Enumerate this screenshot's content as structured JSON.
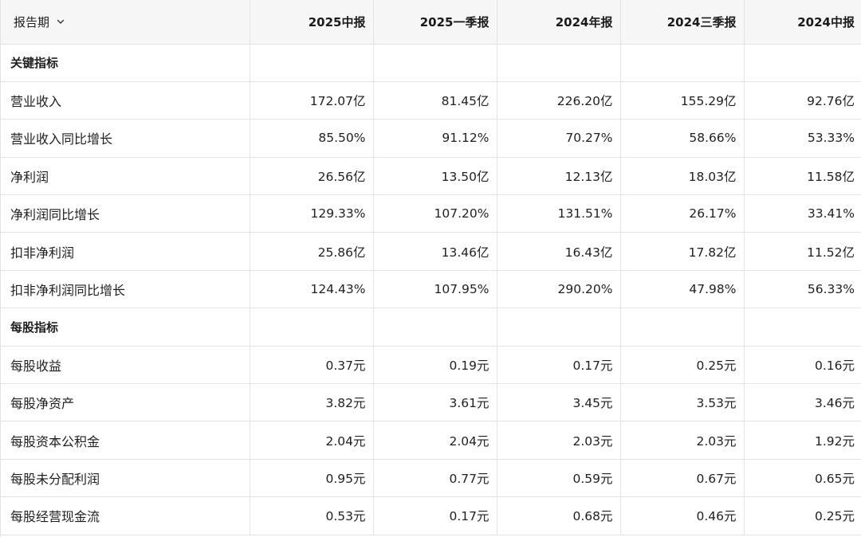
{
  "header": {
    "period_label": "报告期",
    "columns": [
      "2025中报",
      "2025一季报",
      "2024年报",
      "2024三季报",
      "2024中报"
    ]
  },
  "rows": [
    {
      "type": "section",
      "label": "关键指标",
      "values": [
        "",
        "",
        "",
        "",
        ""
      ]
    },
    {
      "type": "data",
      "label": "营业收入",
      "values": [
        "172.07亿",
        "81.45亿",
        "226.20亿",
        "155.29亿",
        "92.76亿"
      ]
    },
    {
      "type": "data",
      "label": "营业收入同比增长",
      "values": [
        "85.50%",
        "91.12%",
        "70.27%",
        "58.66%",
        "53.33%"
      ]
    },
    {
      "type": "data",
      "label": "净利润",
      "values": [
        "26.56亿",
        "13.50亿",
        "12.13亿",
        "18.03亿",
        "11.58亿"
      ]
    },
    {
      "type": "data",
      "label": "净利润同比增长",
      "values": [
        "129.33%",
        "107.20%",
        "131.51%",
        "26.17%",
        "33.41%"
      ]
    },
    {
      "type": "data",
      "label": "扣非净利润",
      "values": [
        "25.86亿",
        "13.46亿",
        "16.43亿",
        "17.82亿",
        "11.52亿"
      ]
    },
    {
      "type": "data",
      "label": "扣非净利润同比增长",
      "values": [
        "124.43%",
        "107.95%",
        "290.20%",
        "47.98%",
        "56.33%"
      ]
    },
    {
      "type": "section",
      "label": "每股指标",
      "values": [
        "",
        "",
        "",
        "",
        ""
      ]
    },
    {
      "type": "data",
      "label": "每股收益",
      "values": [
        "0.37元",
        "0.19元",
        "0.17元",
        "0.25元",
        "0.16元"
      ]
    },
    {
      "type": "data",
      "label": "每股净资产",
      "values": [
        "3.82元",
        "3.61元",
        "3.45元",
        "3.53元",
        "3.46元"
      ]
    },
    {
      "type": "data",
      "label": "每股资本公积金",
      "values": [
        "2.04元",
        "2.04元",
        "2.03元",
        "2.03元",
        "1.92元"
      ]
    },
    {
      "type": "data",
      "label": "每股未分配利润",
      "values": [
        "0.95元",
        "0.77元",
        "0.59元",
        "0.67元",
        "0.65元"
      ]
    },
    {
      "type": "data",
      "label": "每股经营现金流",
      "values": [
        "0.53元",
        "0.17元",
        "0.68元",
        "0.46元",
        "0.25元"
      ]
    }
  ]
}
